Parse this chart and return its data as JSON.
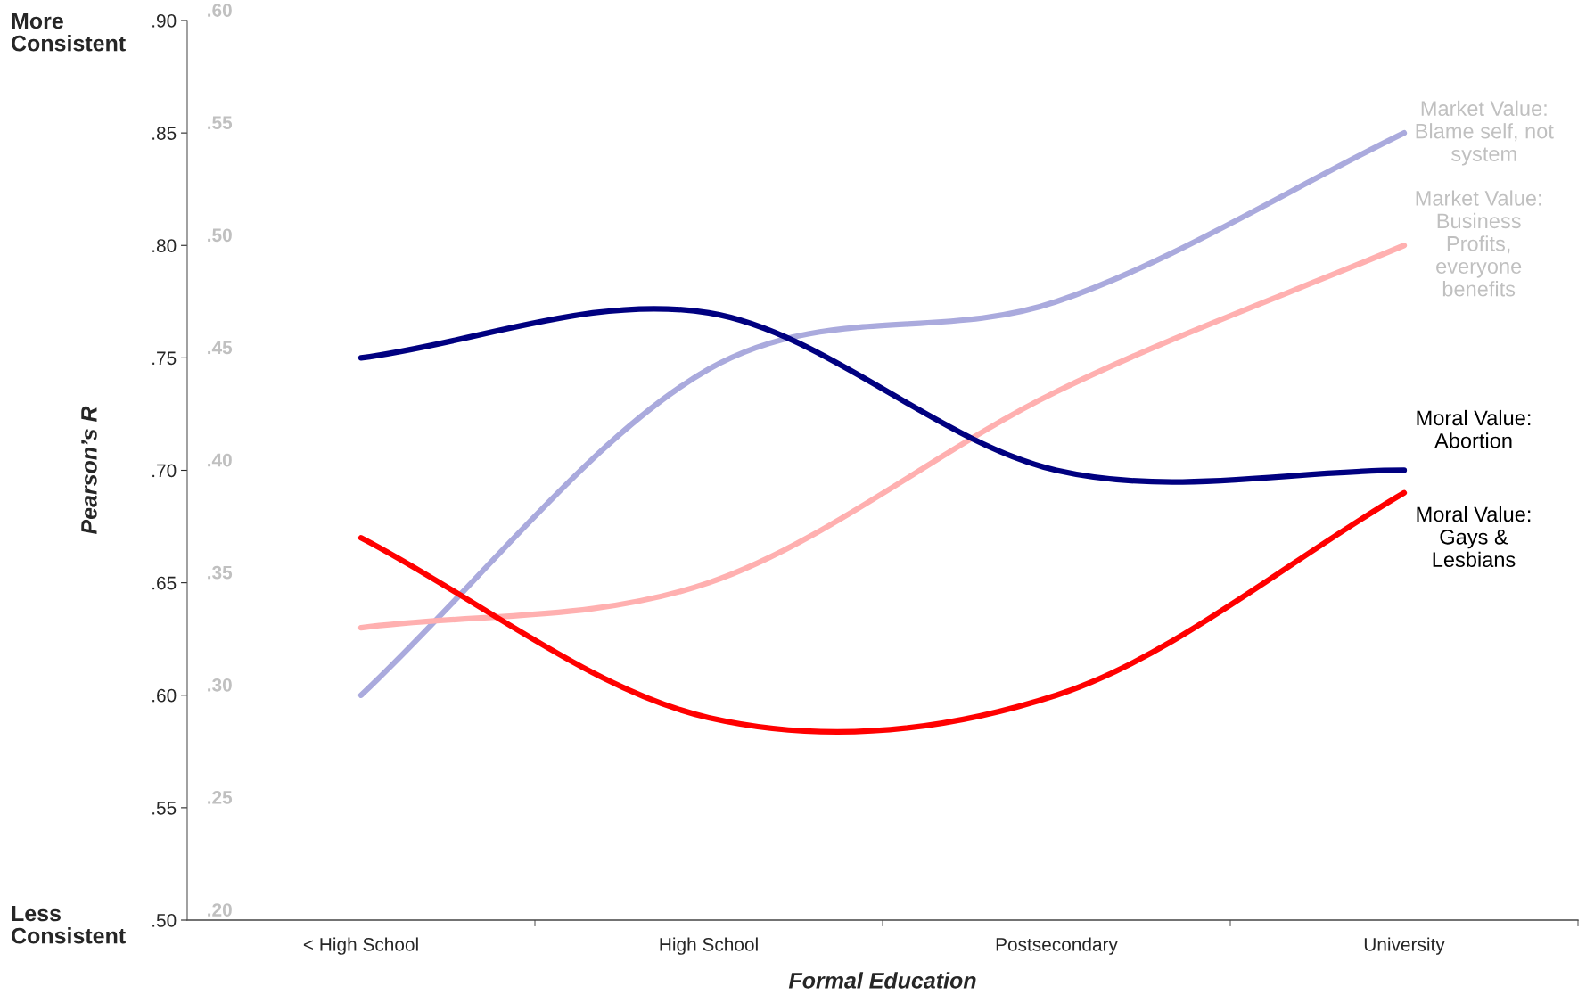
{
  "chart_data": {
    "type": "line",
    "xlabel": "Formal Education",
    "ylabel": "Pearson’s R",
    "categories": [
      "< High School",
      "High School",
      "Postsecondary",
      "University"
    ],
    "ylim": [
      0.5,
      0.9
    ],
    "yticks": [
      {
        "value": 0.5,
        "label": ".50"
      },
      {
        "value": 0.55,
        "label": ".55"
      },
      {
        "value": 0.6,
        "label": ".60"
      },
      {
        "value": 0.65,
        "label": ".65"
      },
      {
        "value": 0.7,
        "label": ".70"
      },
      {
        "value": 0.75,
        "label": ".75"
      },
      {
        "value": 0.8,
        "label": ".80"
      },
      {
        "value": 0.85,
        "label": ".85"
      },
      {
        "value": 0.9,
        "label": ".90"
      }
    ],
    "y2lim": [
      0.2,
      0.6
    ],
    "y2ticks": [
      {
        "value": 0.2,
        "label": ".20"
      },
      {
        "value": 0.25,
        "label": ".25"
      },
      {
        "value": 0.3,
        "label": ".30"
      },
      {
        "value": 0.35,
        "label": ".35"
      },
      {
        "value": 0.4,
        "label": ".40"
      },
      {
        "value": 0.45,
        "label": ".45"
      },
      {
        "value": 0.5,
        "label": ".50"
      },
      {
        "value": 0.55,
        "label": ".55"
      },
      {
        "value": 0.6,
        "label": ".60"
      }
    ],
    "series": [
      {
        "name": "Market Value: Blame self, not system",
        "color": "#aaaadd",
        "axis": "y2",
        "values": [
          0.3,
          0.445,
          0.475,
          0.55
        ]
      },
      {
        "name": "Market Value: Business Profits, everyone benefits",
        "color": "#ffb0b0",
        "axis": "y2",
        "values": [
          0.33,
          0.35,
          0.435,
          0.5
        ]
      },
      {
        "name": "Moral Value: Abortion",
        "color": "#000080",
        "values": [
          0.75,
          0.77,
          0.7,
          0.7
        ]
      },
      {
        "name": "Moral Value: Gays & Lesbians",
        "color": "#ff0000",
        "values": [
          0.67,
          0.59,
          0.6,
          0.69
        ]
      }
    ],
    "annotations": [
      "More Consistent",
      "Less Consistent"
    ],
    "grid": false,
    "legend": false,
    "marker": "none",
    "line_style": "solid"
  }
}
